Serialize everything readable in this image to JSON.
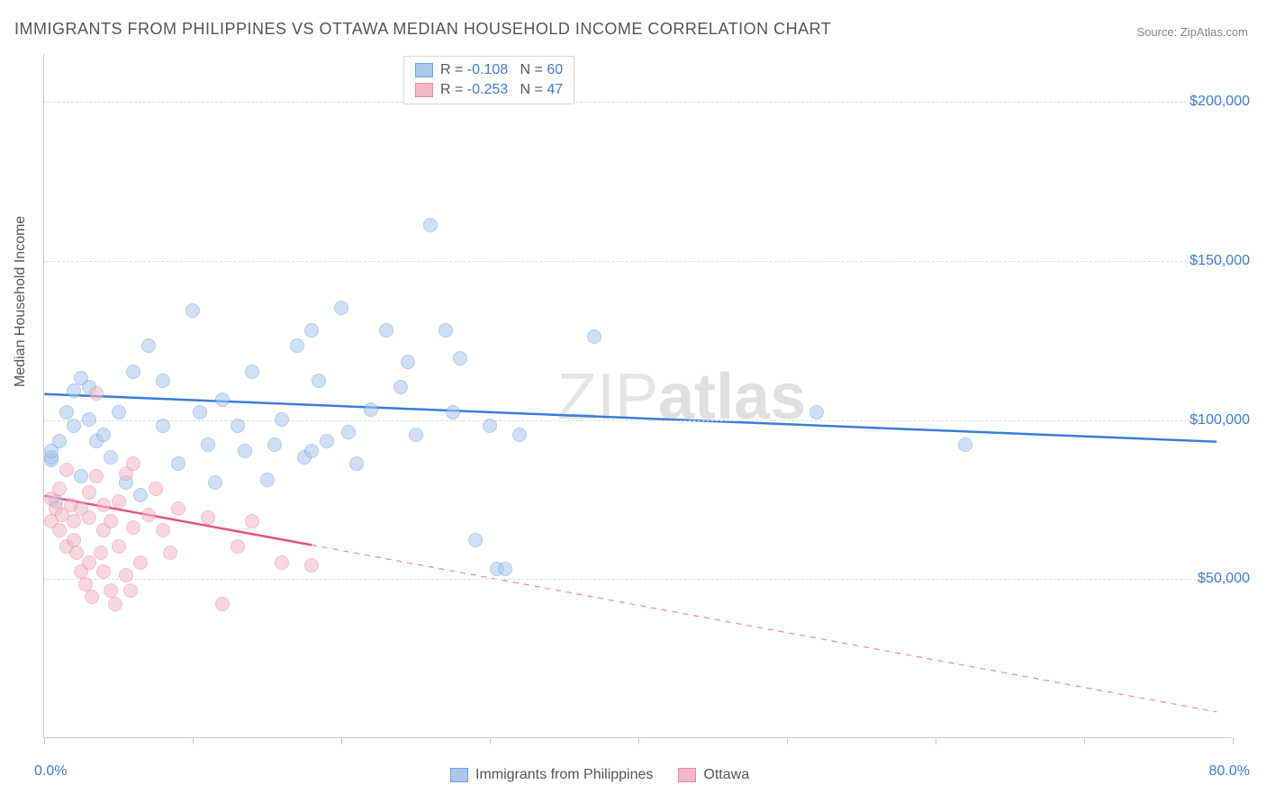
{
  "title": "IMMIGRANTS FROM PHILIPPINES VS OTTAWA MEDIAN HOUSEHOLD INCOME CORRELATION CHART",
  "source_label": "Source: ZipAtlas.com",
  "watermark": {
    "part1": "ZIP",
    "part2": "atlas"
  },
  "chart": {
    "type": "scatter",
    "background_color": "#ffffff",
    "grid_color": "#dddddd",
    "axis_color": "#cccccc",
    "ylabel": "Median Household Income",
    "ylabel_fontsize": 16,
    "x_domain": [
      0,
      80
    ],
    "y_domain": [
      0,
      215000
    ],
    "y_gridlines": [
      50000,
      100000,
      150000,
      200000
    ],
    "y_tick_labels": [
      "$50,000",
      "$100,000",
      "$150,000",
      "$200,000"
    ],
    "x_ticks": [
      0,
      10,
      20,
      30,
      40,
      50,
      60,
      70,
      80
    ],
    "x_min_label": "0.0%",
    "x_max_label": "80.0%",
    "tick_label_color": "#3b7dd8",
    "tick_label_fontsize": 16,
    "marker_radius": 8,
    "marker_opacity": 0.55,
    "series": [
      {
        "name": "Immigrants from Philippines",
        "fill_color": "#a8c8ec",
        "stroke_color": "#6ea2de",
        "trend_color": "#3b7dd8",
        "trend_width": 2.5,
        "R": "-0.108",
        "N": "60",
        "trend": {
          "x1": 0,
          "y1": 108000,
          "x2": 79,
          "y2": 93000,
          "dash_from_x": null
        },
        "points": [
          [
            0.5,
            87000
          ],
          [
            0.5,
            88000
          ],
          [
            0.5,
            90000
          ],
          [
            0.8,
            74000
          ],
          [
            1.0,
            93000
          ],
          [
            1.5,
            102000
          ],
          [
            2.0,
            109000
          ],
          [
            2.0,
            98000
          ],
          [
            2.5,
            82000
          ],
          [
            2.5,
            113000
          ],
          [
            3.0,
            110000
          ],
          [
            3.0,
            100000
          ],
          [
            3.5,
            93000
          ],
          [
            4.0,
            95000
          ],
          [
            4.5,
            88000
          ],
          [
            5.0,
            102000
          ],
          [
            5.5,
            80000
          ],
          [
            6.0,
            115000
          ],
          [
            6.5,
            76000
          ],
          [
            7.0,
            123000
          ],
          [
            8.0,
            98000
          ],
          [
            8.0,
            112000
          ],
          [
            9.0,
            86000
          ],
          [
            10.0,
            134000
          ],
          [
            10.5,
            102000
          ],
          [
            11.0,
            92000
          ],
          [
            11.5,
            80000
          ],
          [
            12.0,
            106000
          ],
          [
            13.0,
            98000
          ],
          [
            13.5,
            90000
          ],
          [
            14.0,
            115000
          ],
          [
            15.0,
            81000
          ],
          [
            15.5,
            92000
          ],
          [
            16.0,
            100000
          ],
          [
            17.0,
            123000
          ],
          [
            17.5,
            88000
          ],
          [
            18.0,
            128000
          ],
          [
            18.0,
            90000
          ],
          [
            18.5,
            112000
          ],
          [
            19.0,
            93000
          ],
          [
            20.0,
            135000
          ],
          [
            20.5,
            96000
          ],
          [
            21.0,
            86000
          ],
          [
            22.0,
            103000
          ],
          [
            23.0,
            128000
          ],
          [
            24.0,
            110000
          ],
          [
            24.5,
            118000
          ],
          [
            25.0,
            95000
          ],
          [
            26.0,
            161000
          ],
          [
            27.0,
            128000
          ],
          [
            27.5,
            102000
          ],
          [
            28.0,
            119000
          ],
          [
            29.0,
            62000
          ],
          [
            30.0,
            98000
          ],
          [
            30.5,
            53000
          ],
          [
            31.0,
            53000
          ],
          [
            32.0,
            95000
          ],
          [
            37.0,
            126000
          ],
          [
            52.0,
            102000
          ],
          [
            62.0,
            92000
          ]
        ]
      },
      {
        "name": "Ottawa",
        "fill_color": "#f4b8c8",
        "stroke_color": "#e789a4",
        "trend_color": "#e6537d",
        "trend_width": 2.5,
        "R": "-0.253",
        "N": "47",
        "trend": {
          "x1": 0,
          "y1": 76000,
          "x2": 79,
          "y2": 8000,
          "dash_from_x": 18
        },
        "points": [
          [
            0.5,
            75000
          ],
          [
            0.5,
            68000
          ],
          [
            0.8,
            72000
          ],
          [
            1.0,
            78000
          ],
          [
            1.0,
            65000
          ],
          [
            1.2,
            70000
          ],
          [
            1.5,
            84000
          ],
          [
            1.5,
            60000
          ],
          [
            1.8,
            73000
          ],
          [
            2.0,
            68000
          ],
          [
            2.0,
            62000
          ],
          [
            2.2,
            58000
          ],
          [
            2.5,
            52000
          ],
          [
            2.5,
            72000
          ],
          [
            2.8,
            48000
          ],
          [
            3.0,
            77000
          ],
          [
            3.0,
            69000
          ],
          [
            3.0,
            55000
          ],
          [
            3.2,
            44000
          ],
          [
            3.5,
            82000
          ],
          [
            3.5,
            108000
          ],
          [
            3.8,
            58000
          ],
          [
            4.0,
            65000
          ],
          [
            4.0,
            73000
          ],
          [
            4.0,
            52000
          ],
          [
            4.5,
            46000
          ],
          [
            4.5,
            68000
          ],
          [
            4.8,
            42000
          ],
          [
            5.0,
            60000
          ],
          [
            5.0,
            74000
          ],
          [
            5.5,
            83000
          ],
          [
            5.5,
            51000
          ],
          [
            5.8,
            46000
          ],
          [
            6.0,
            86000
          ],
          [
            6.0,
            66000
          ],
          [
            6.5,
            55000
          ],
          [
            7.0,
            70000
          ],
          [
            7.5,
            78000
          ],
          [
            8.0,
            65000
          ],
          [
            8.5,
            58000
          ],
          [
            9.0,
            72000
          ],
          [
            11.0,
            69000
          ],
          [
            12.0,
            42000
          ],
          [
            13.0,
            60000
          ],
          [
            14.0,
            68000
          ],
          [
            16.0,
            55000
          ],
          [
            18.0,
            54000
          ]
        ]
      }
    ],
    "legend_bottom": [
      {
        "label": "Immigrants from Philippines",
        "fill": "#a8c8ec",
        "stroke": "#6ea2de"
      },
      {
        "label": "Ottawa",
        "fill": "#f4b8c8",
        "stroke": "#e789a4"
      }
    ]
  }
}
